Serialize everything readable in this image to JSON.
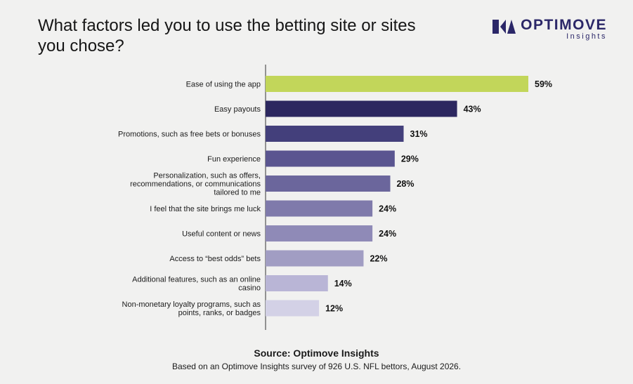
{
  "title": "What factors led you to use the betting site or sites you chose?",
  "logo": {
    "name": "OPTIMOVE",
    "sub": "Insights",
    "icon": "optimove-logo-icon"
  },
  "source": "Source: Optimove Insights",
  "note": "Based on an Optimove Insights survey of 926 U.S. NFL bettors, August 2026.",
  "colors": {
    "highlight": "#c2d65a",
    "bars": [
      "#2c275f",
      "#433f7b",
      "#5a5590",
      "#6b669c",
      "#7f7aab",
      "#8f8ab7",
      "#a19dc3",
      "#b9b5d6",
      "#d3d1e6"
    ],
    "brand": "#2b2768"
  },
  "chart_data": {
    "type": "bar",
    "orientation": "horizontal",
    "title": "What factors led you to use the betting site or sites you chose?",
    "categories": [
      [
        "Ease of using the app"
      ],
      [
        "Easy payouts"
      ],
      [
        "Promotions, such as free bets or bonuses"
      ],
      [
        "Fun experience"
      ],
      [
        "Personalization, such as offers,",
        "recommendations, or communications",
        "tailored to me"
      ],
      [
        "I feel that the site brings me luck"
      ],
      [
        "Useful content or news"
      ],
      [
        "Access to “best odds” bets"
      ],
      [
        "Additional features, such as an online",
        "casino"
      ],
      [
        "Non-monetary loyalty programs, such as",
        "points, ranks, or badges"
      ]
    ],
    "values": [
      59,
      43,
      31,
      29,
      28,
      24,
      24,
      22,
      14,
      12
    ],
    "value_labels": [
      "59%",
      "43%",
      "31%",
      "29%",
      "28%",
      "24%",
      "24%",
      "22%",
      "14%",
      "12%"
    ],
    "unit": "%",
    "xlim": [
      0,
      59
    ],
    "grid": false,
    "legend": "none"
  }
}
